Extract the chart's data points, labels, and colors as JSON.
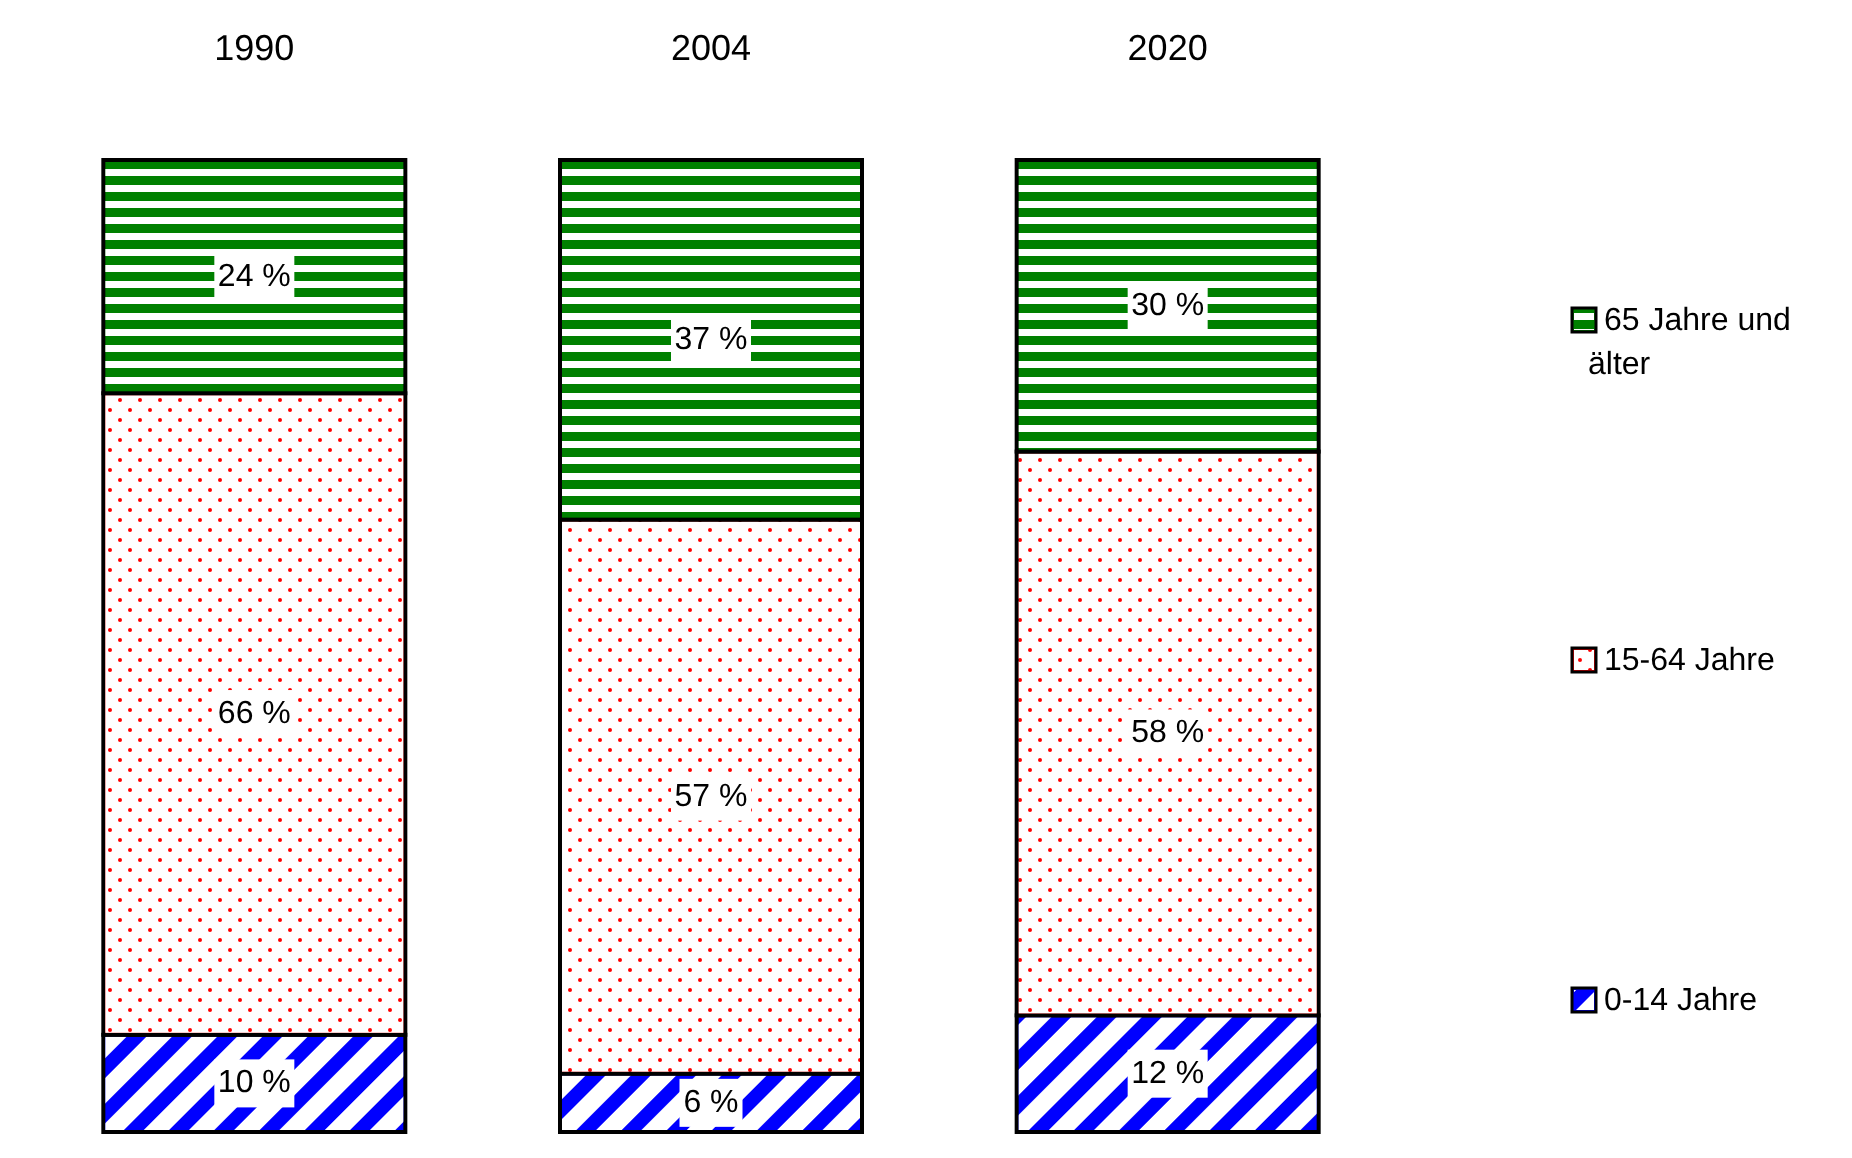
{
  "chart_data": {
    "type": "bar",
    "stacked": true,
    "categories": [
      "1990",
      "2004",
      "2020"
    ],
    "legend": "right",
    "series": [
      {
        "name": "0-14 Jahre",
        "color": "#0000ff",
        "values": [
          10,
          6,
          12
        ],
        "value_labels": [
          "10 %",
          "6 %",
          "12 %"
        ]
      },
      {
        "name": "15-64 Jahre",
        "color": "#ff0000",
        "values": [
          66,
          57,
          58
        ],
        "value_labels": [
          "66 %",
          "57 %",
          "58 %"
        ]
      },
      {
        "name": "65 Jahre und älter",
        "color": "#008000",
        "values": [
          24,
          37,
          30
        ],
        "value_labels": [
          "24 %",
          "37 %",
          "30 %"
        ]
      }
    ]
  }
}
